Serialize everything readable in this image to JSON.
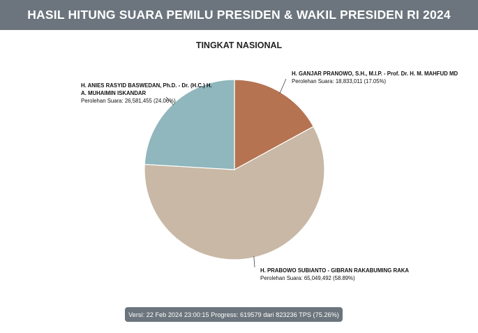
{
  "header": {
    "title": "HASIL HITUNG SUARA PEMILU PRESIDEN & WAKIL PRESIDEN RI 2024"
  },
  "footer": {
    "version_text": "Versi: 22 Feb 2024 23:00:15 Progress: 619579 dari 823236 TPS (75.26%)"
  },
  "chart_data": {
    "type": "pie",
    "title": "TINGKAT NASIONAL",
    "slices": [
      {
        "name_line1": "H. GANJAR PRANOWO, S.H., M.I.P. - Prof. Dr. H. M. MAHFUD MD",
        "name_line2": "",
        "votes_label": "Perolehan Suara: 18,833,011 (17.05%)",
        "value": 18833011,
        "percent": 17.05,
        "color": "#b57352"
      },
      {
        "name_line1": "H. PRABOWO SUBIANTO - GIBRAN RAKABUMING RAKA",
        "name_line2": "",
        "votes_label": "Perolehan Suara: 65,049,492 (58.89%)",
        "value": 65049492,
        "percent": 58.89,
        "color": "#c8b8a5"
      },
      {
        "name_line1": "H. ANIES RASYID BASWEDAN, Ph.D. - Dr. (H.C.) H.",
        "name_line2": "A. MUHAIMIN ISKANDAR",
        "votes_label": "Perolehan Suara: 26,581,455 (24.06%)",
        "value": 26581455,
        "percent": 24.06,
        "color": "#8fb7bd"
      }
    ]
  }
}
